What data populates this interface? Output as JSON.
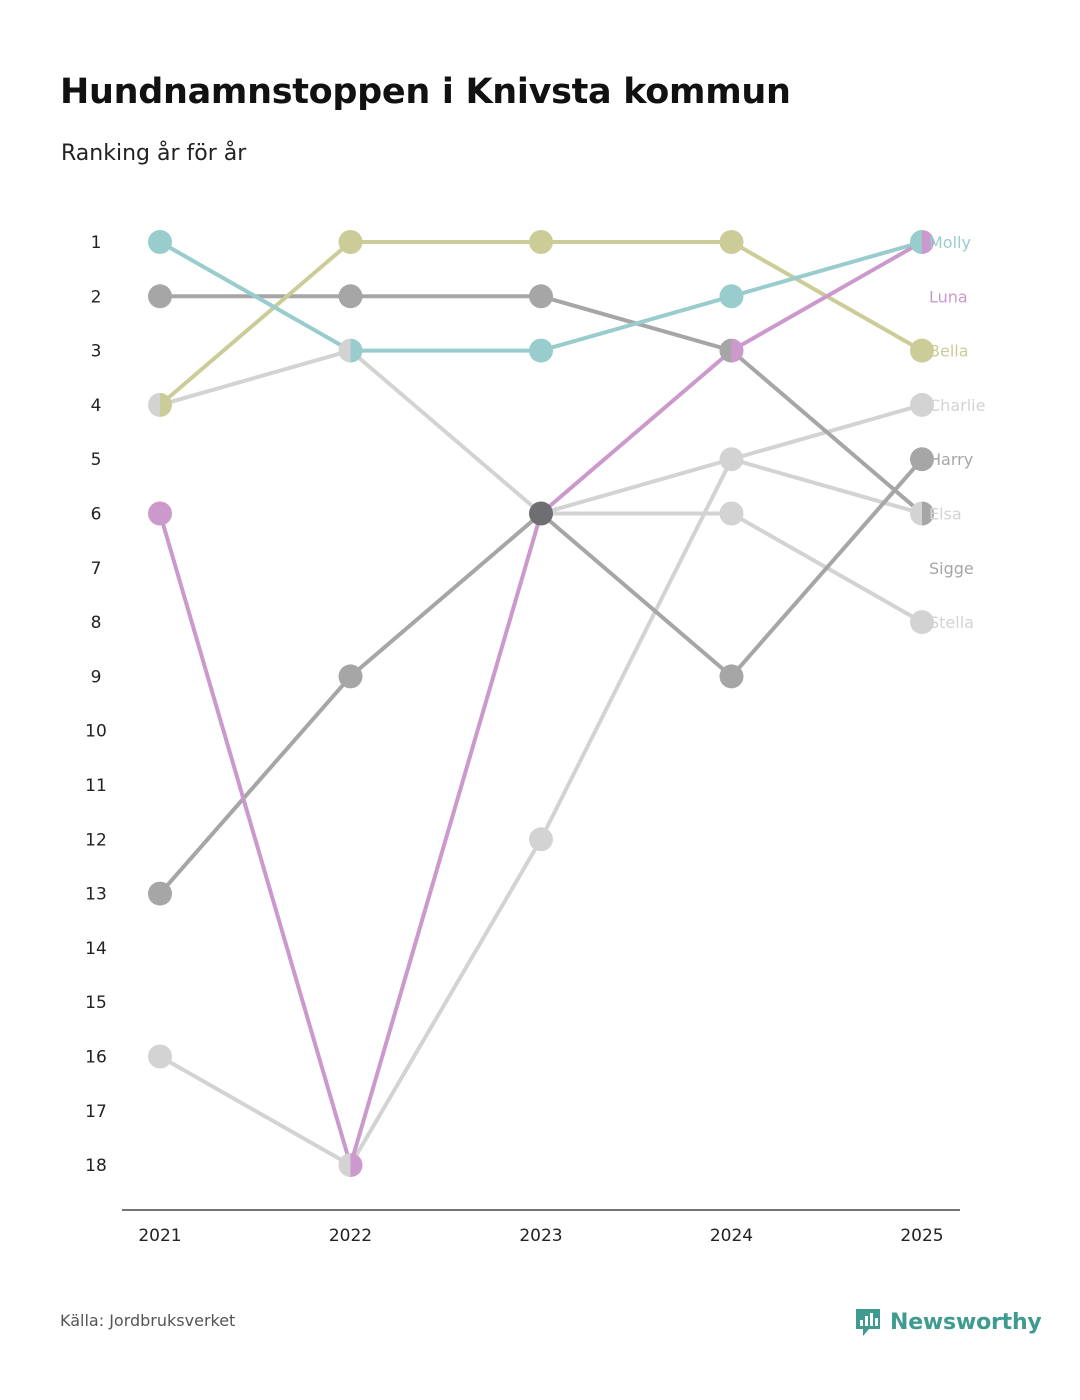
{
  "header": {
    "title": "Hundnamnstoppen i Knivsta kommun",
    "subtitle": "Ranking år för år"
  },
  "footer": {
    "source": "Källa: Jordbruksverket",
    "brand": "Newsworthy",
    "brand_icon": "bar-chart-speech-icon",
    "brand_color": "#3f9a8f"
  },
  "chart_data": {
    "type": "line",
    "title": "Hundnamnstoppen i Knivsta kommun",
    "subtitle": "Ranking år för år",
    "xlabel": "",
    "ylabel": "",
    "x": [
      "2021",
      "2022",
      "2023",
      "2024",
      "2025"
    ],
    "y_ticks": [
      "1",
      "2",
      "3",
      "4",
      "5",
      "6",
      "7",
      "8",
      "9",
      "10",
      "11",
      "12",
      "13",
      "14",
      "15",
      "16",
      "17",
      "18"
    ],
    "ylim": [
      1,
      18
    ],
    "y_inverted": true,
    "grid": false,
    "legend": "direct labels at right end",
    "series": [
      {
        "name": "Charlie",
        "color": "#d3d3d3",
        "values": [
          16,
          18,
          12,
          5,
          4
        ]
      },
      {
        "name": "Stella",
        "color": "#d3d3d3",
        "values": [
          4,
          3,
          6,
          6,
          8
        ]
      },
      {
        "name": "Elsa",
        "color": "#d3d3d3",
        "values": [
          null,
          null,
          6,
          5,
          6
        ]
      },
      {
        "name": "Harry",
        "color": "#a6a6a6",
        "values": [
          13,
          9,
          6,
          9,
          5
        ]
      },
      {
        "name": "Sigge",
        "color": "#a6a6a6",
        "values": [
          2,
          2,
          2,
          3,
          6
        ]
      },
      {
        "name": "Bella",
        "color": "#cccc99",
        "values": [
          4,
          1,
          1,
          1,
          3
        ]
      },
      {
        "name": "Molly",
        "color": "#99cccc",
        "values": [
          1,
          3,
          3,
          2,
          1
        ]
      },
      {
        "name": "Luna",
        "color": "#cc99cc",
        "values": [
          6,
          18,
          6,
          3,
          1
        ]
      }
    ],
    "end_labels": [
      {
        "name": "Molly",
        "rank": 1,
        "color": "#99cccc"
      },
      {
        "name": "Luna",
        "rank": 2,
        "color": "#cc99cc"
      },
      {
        "name": "Bella",
        "rank": 3,
        "color": "#cccc99"
      },
      {
        "name": "Charlie",
        "rank": 4,
        "color": "#d3d3d3"
      },
      {
        "name": "Harry",
        "rank": 5,
        "color": "#a6a6a6"
      },
      {
        "name": "Elsa",
        "rank": 6,
        "color": "#d3d3d3"
      },
      {
        "name": "Sigge",
        "rank": 7,
        "color": "#a6a6a6"
      },
      {
        "name": "Stella",
        "rank": 8,
        "color": "#d3d3d3"
      }
    ],
    "highlight_color": "#6e6e73"
  }
}
